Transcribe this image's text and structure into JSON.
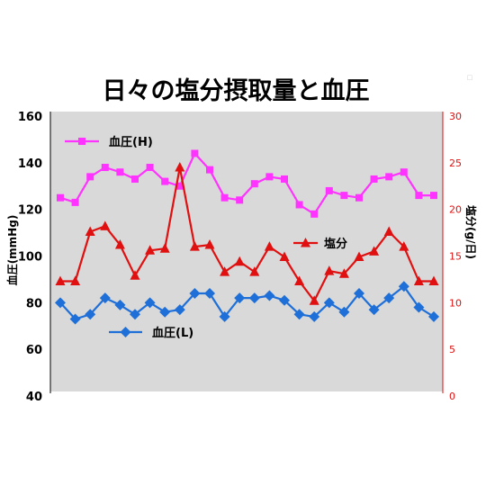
{
  "chart_data": {
    "type": "line",
    "title": "日々の塩分摂取量と血圧",
    "ylabel": "血圧(mmHg)",
    "y2label": "塩分(g/日)",
    "ylim": [
      40,
      160
    ],
    "y2lim": [
      0,
      30
    ],
    "yticks": [
      "160",
      "140",
      "120",
      "100",
      "80",
      "60",
      "40"
    ],
    "y2ticks": [
      "30",
      "25",
      "20",
      "15",
      "10",
      "5",
      "0"
    ],
    "plot_background": "#d9d9d9",
    "series": [
      {
        "name": "血圧(H)",
        "axis": "left",
        "color": "#ff33ff",
        "marker": "square",
        "values": [
          125,
          123,
          134,
          138,
          136,
          133,
          138,
          132,
          130,
          144,
          137,
          125,
          124,
          131,
          134,
          133,
          122,
          118,
          128,
          126,
          125,
          133,
          134,
          136,
          126,
          126
        ]
      },
      {
        "name": "塩分",
        "axis": "right",
        "color": "#e01010",
        "marker": "triangle",
        "values": [
          12.3,
          12.3,
          17.6,
          18.2,
          16.2,
          12.9,
          15.6,
          15.8,
          24.5,
          16.0,
          16.2,
          13.3,
          14.4,
          13.3,
          16.0,
          14.9,
          12.3,
          10.2,
          13.4,
          13.1,
          14.9,
          15.5,
          17.6,
          16.0,
          12.3,
          12.3
        ]
      },
      {
        "name": "血圧(L)",
        "axis": "left",
        "color": "#1f6fd9",
        "marker": "diamond",
        "values": [
          80,
          73,
          75,
          82,
          79,
          75,
          80,
          76,
          77,
          84,
          84,
          74,
          82,
          82,
          83,
          81,
          75,
          74,
          80,
          76,
          84,
          77,
          82,
          87,
          78,
          74
        ]
      }
    ],
    "legend": [
      {
        "label": "血圧(H)",
        "series": 0
      },
      {
        "label": "塩分",
        "series": 1
      },
      {
        "label": "血圧(L)",
        "series": 2
      }
    ]
  }
}
